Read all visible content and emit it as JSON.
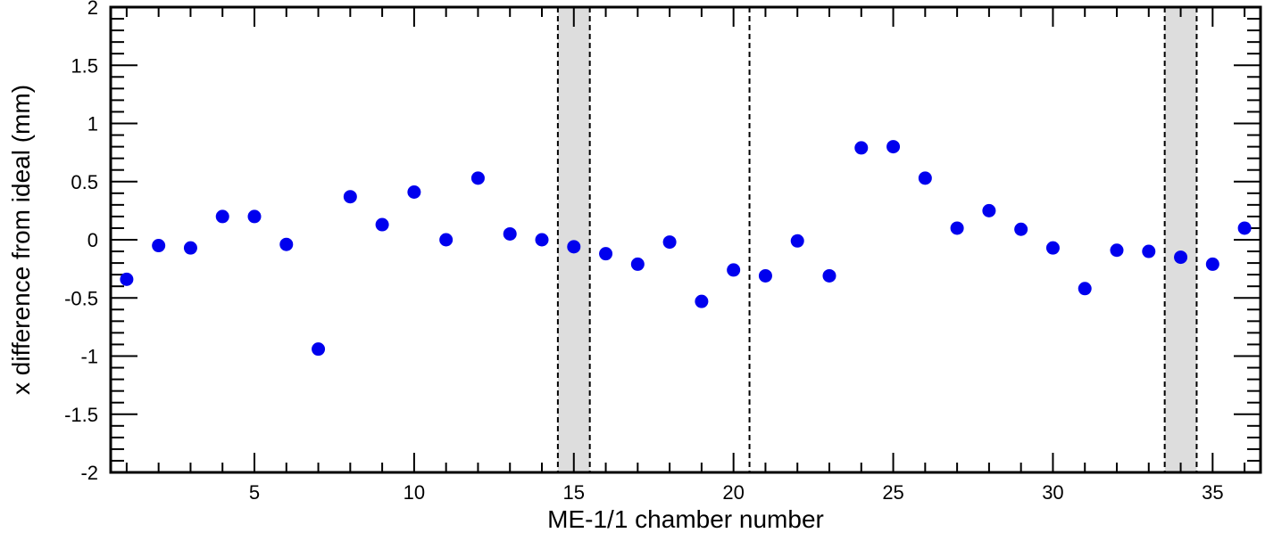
{
  "chart_data": {
    "type": "scatter",
    "xlabel": "ME-1/1 chamber number",
    "ylabel": "x difference from ideal (mm)",
    "xlim": [
      0.5,
      36.5
    ],
    "ylim": [
      -2,
      2
    ],
    "x_ticks": [
      5,
      10,
      15,
      20,
      25,
      30,
      35
    ],
    "y_ticks": [
      -2,
      -1.5,
      -1,
      -0.5,
      0,
      0.5,
      1,
      1.5,
      2
    ],
    "x_tick_labels": [
      "5",
      "10",
      "15",
      "20",
      "25",
      "30",
      "35"
    ],
    "y_tick_labels": [
      "-2",
      "-1.5",
      "-1",
      "-0.5",
      "0",
      "0.5",
      "1",
      "1.5",
      "2"
    ],
    "grid": false,
    "marker_color": "#0000ee",
    "series": [
      {
        "x": [
          1,
          2,
          3,
          4,
          5,
          6,
          7,
          8,
          9,
          10,
          11,
          12,
          13,
          14,
          15,
          16,
          17,
          18,
          19,
          20,
          21,
          22,
          23,
          24,
          25,
          26,
          27,
          28,
          29,
          30,
          31,
          32,
          33,
          34,
          35,
          36
        ],
        "y": [
          -0.34,
          -0.05,
          -0.07,
          0.2,
          0.2,
          -0.04,
          -0.94,
          0.37,
          0.13,
          0.41,
          0.0,
          0.53,
          0.05,
          0.0,
          -0.06,
          -0.12,
          -0.21,
          -0.02,
          -0.53,
          -0.26,
          -0.31,
          -0.01,
          -0.31,
          0.79,
          0.8,
          0.53,
          0.1,
          0.25,
          0.09,
          -0.07,
          -0.42,
          -0.09,
          -0.1,
          -0.15,
          -0.21,
          0.1
        ]
      }
    ],
    "shaded_regions": [
      {
        "x_range": [
          14.5,
          15.5
        ],
        "color": "#dddddd"
      },
      {
        "x_range": [
          33.5,
          34.5
        ],
        "color": "#dddddd"
      }
    ],
    "dashed_lines_x": [
      14.5,
      15.5,
      20.5,
      33.5,
      34.5
    ]
  }
}
